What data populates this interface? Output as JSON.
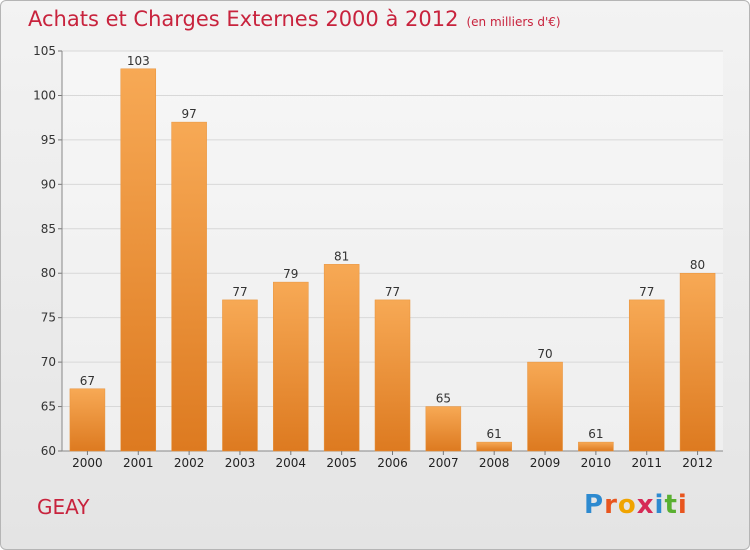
{
  "header": {
    "title": "Achats et Charges Externes 2000 à 2012",
    "unit": "(en milliers d'€)"
  },
  "footer": {
    "commune": "GEAY",
    "logo_letters": [
      "P",
      "r",
      "o",
      "x",
      "i",
      "t",
      "i"
    ],
    "logo_colors": [
      "#2d8ad0",
      "#e8551e",
      "#f0a400",
      "#d62a56",
      "#2d8ad0",
      "#5ab031",
      "#e8551e"
    ]
  },
  "colors": {
    "bar_light": "#f7a955",
    "bar_dark": "#dd7a20",
    "title": "#c8233d"
  },
  "chart_data": {
    "type": "bar",
    "title": "Achats et Charges Externes 2000 à 2012",
    "subtitle": "(en milliers d'€)",
    "categories": [
      "2000",
      "2001",
      "2002",
      "2003",
      "2004",
      "2005",
      "2006",
      "2007",
      "2008",
      "2009",
      "2010",
      "2011",
      "2012"
    ],
    "values": [
      67,
      103,
      97,
      77,
      79,
      81,
      77,
      65,
      61,
      70,
      61,
      77,
      80
    ],
    "ylim": [
      60,
      105
    ],
    "yticks": [
      60,
      65,
      70,
      75,
      80,
      85,
      90,
      95,
      100,
      105
    ],
    "grid": true,
    "xlabel": "",
    "ylabel": ""
  }
}
